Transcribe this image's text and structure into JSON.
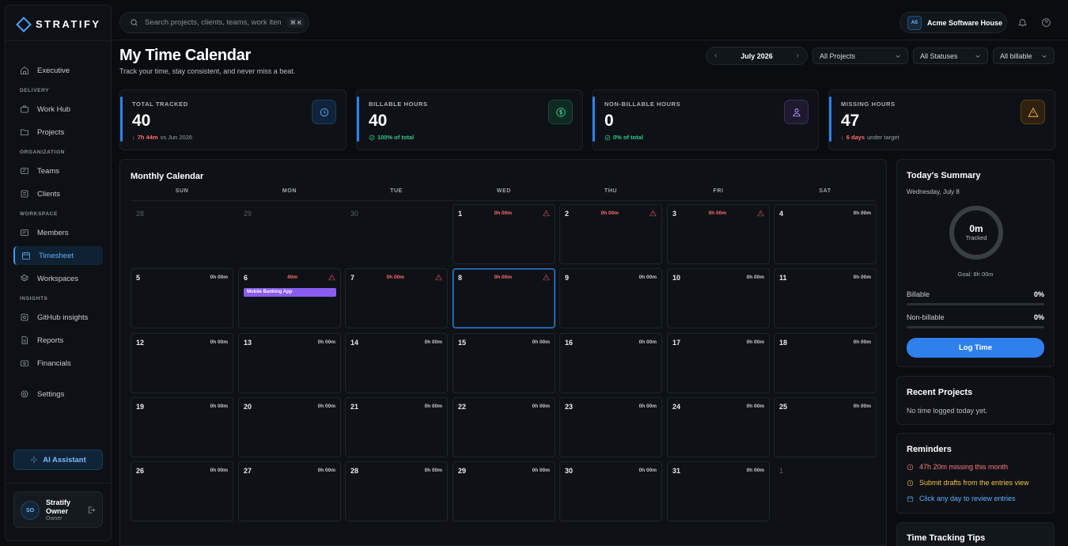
{
  "app": {
    "name": "STRATIFY"
  },
  "sidebar": {
    "top": [
      {
        "label": "Executive",
        "icon": "home-icon"
      }
    ],
    "sections": [
      {
        "title": "DELIVERY",
        "items": [
          {
            "label": "Work Hub"
          },
          {
            "label": "Projects"
          }
        ]
      },
      {
        "title": "ORGANIZATION",
        "items": [
          {
            "label": "Teams"
          },
          {
            "label": "Clients"
          }
        ]
      },
      {
        "title": "WORKSPACE",
        "items": [
          {
            "label": "Members"
          },
          {
            "label": "Timesheet"
          },
          {
            "label": "Workspaces"
          }
        ]
      },
      {
        "title": "INSIGHTS",
        "items": [
          {
            "label": "GitHub insights"
          },
          {
            "label": "Reports"
          },
          {
            "label": "Financials"
          }
        ]
      }
    ],
    "settings_label": "Settings",
    "ai_label": "AI Assistant",
    "user": {
      "initials": "SO",
      "name": "Stratify Owner",
      "role": "Owner"
    }
  },
  "topbar": {
    "search_placeholder": "Search projects, clients, teams, work items...",
    "shortcut": "⌘ K",
    "workspace_initials": "AS",
    "workspace_name": "Acme Software House"
  },
  "header": {
    "title": "My Time Calendar",
    "subtitle": "Track your time, stay consistent, and never miss a beat.",
    "month": "July 2026",
    "filters": {
      "projects": "All Projects",
      "statuses": "All Statuses",
      "billable": "All billable"
    }
  },
  "stats": [
    {
      "label": "TOTAL TRACKED",
      "value": "40",
      "note_strong": "7h 44m",
      "note_rest": "vs Jun 2026",
      "accent": "#2f80ed"
    },
    {
      "label": "BILLABLE HOURS",
      "value": "40",
      "note_strong": "100% of total",
      "note_rest": "",
      "accent": "#2f80ed"
    },
    {
      "label": "NON-BILLABLE HOURS",
      "value": "0",
      "note_strong": "0% of total",
      "note_rest": "",
      "accent": "#2f80ed"
    },
    {
      "label": "MISSING HOURS",
      "value": "47",
      "note_strong": "6 days",
      "note_rest": "under target",
      "accent": "#2f80ed"
    }
  ],
  "calendar": {
    "title": "Monthly Calendar",
    "weekdays": [
      "SUN",
      "MON",
      "TUE",
      "WED",
      "THU",
      "FRI",
      "SAT"
    ],
    "weeks": [
      [
        {
          "d": "28",
          "other": true
        },
        {
          "d": "29",
          "other": true
        },
        {
          "d": "30",
          "other": true
        },
        {
          "d": "1",
          "h": "0h 00m",
          "warn": true
        },
        {
          "d": "2",
          "h": "0h 00m",
          "warn": true
        },
        {
          "d": "3",
          "h": "0h 00m",
          "warn": true
        },
        {
          "d": "4",
          "h": "0h 00m"
        }
      ],
      [
        {
          "d": "5",
          "h": "0h 00m"
        },
        {
          "d": "6",
          "h": "40m",
          "warn": true,
          "entry": "Mobile Banking App"
        },
        {
          "d": "7",
          "h": "0h 00m",
          "warn": true
        },
        {
          "d": "8",
          "h": "0h 00m",
          "warn": true,
          "today": true
        },
        {
          "d": "9",
          "h": "0h 00m"
        },
        {
          "d": "10",
          "h": "0h 00m"
        },
        {
          "d": "11",
          "h": "0h 00m"
        }
      ],
      [
        {
          "d": "12",
          "h": "0h 00m"
        },
        {
          "d": "13",
          "h": "0h 00m"
        },
        {
          "d": "14",
          "h": "0h 00m"
        },
        {
          "d": "15",
          "h": "0h 00m"
        },
        {
          "d": "16",
          "h": "0h 00m"
        },
        {
          "d": "17",
          "h": "0h 00m"
        },
        {
          "d": "18",
          "h": "0h 00m"
        }
      ],
      [
        {
          "d": "19",
          "h": "0h 00m"
        },
        {
          "d": "20",
          "h": "0h 00m"
        },
        {
          "d": "21",
          "h": "0h 00m"
        },
        {
          "d": "22",
          "h": "0h 00m"
        },
        {
          "d": "23",
          "h": "0h 00m"
        },
        {
          "d": "24",
          "h": "0h 00m"
        },
        {
          "d": "25",
          "h": "0h 00m"
        }
      ],
      [
        {
          "d": "26",
          "h": "0h 00m"
        },
        {
          "d": "27",
          "h": "0h 00m"
        },
        {
          "d": "28",
          "h": "0h 00m"
        },
        {
          "d": "29",
          "h": "0h 00m"
        },
        {
          "d": "30",
          "h": "0h 00m"
        },
        {
          "d": "31",
          "h": "0h 00m"
        },
        {
          "d": "1",
          "other": true
        }
      ]
    ]
  },
  "summary": {
    "title": "Today's Summary",
    "date": "Wednesday, July 8",
    "tracked_value": "0m",
    "tracked_label": "Tracked",
    "goal": "Goal: 8h 00m",
    "billable_label": "Billable",
    "billable_pct": "0%",
    "nonbillable_label": "Non-billable",
    "nonbillable_pct": "0%",
    "log_button": "Log Time"
  },
  "recent": {
    "title": "Recent Projects",
    "empty": "No time logged today yet."
  },
  "reminders": {
    "title": "Reminders",
    "items": [
      {
        "text": "47h 20m missing this month",
        "color": "#ff7a7a"
      },
      {
        "text": "Submit drafts from the entries view",
        "color": "#f5c04a"
      },
      {
        "text": "Click any day to review entries",
        "color": "#5fb0ff"
      }
    ]
  },
  "tips": {
    "title": "Time Tracking Tips"
  }
}
